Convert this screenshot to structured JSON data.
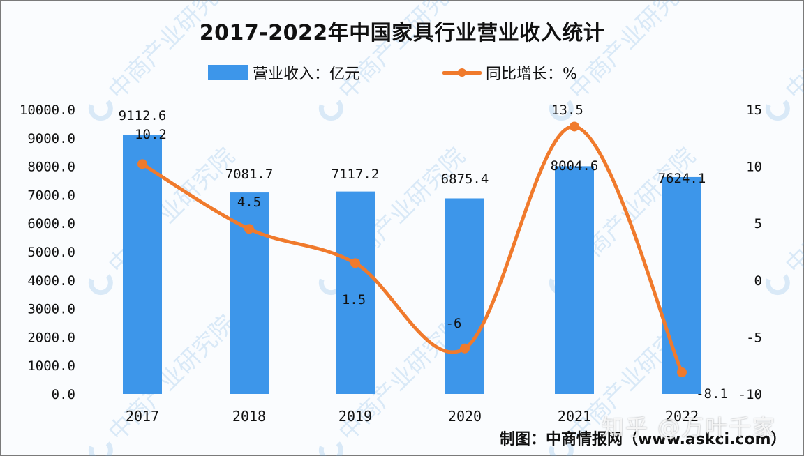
{
  "title": "2017-2022年中国家具行业营业收入统计",
  "legend": {
    "bar_label": "营业收入：亿元",
    "line_label": "同比增长：%"
  },
  "source": "制图：中商情报网（www.askci.com）",
  "overlay_watermark": "知乎 @万叶千家",
  "background_watermark": "中商产业研究院",
  "colors": {
    "bar": "#3d96ea",
    "line": "#f07a2c",
    "text": "#111111"
  },
  "chart_data": {
    "type": "bar+line",
    "title": "2017-2022年中国家具行业营业收入统计",
    "categories": [
      "2017",
      "2018",
      "2019",
      "2020",
      "2021",
      "2022"
    ],
    "series": [
      {
        "name": "营业收入：亿元",
        "type": "bar",
        "axis": "left",
        "values": [
          9112.6,
          7081.7,
          7117.2,
          6875.4,
          8004.6,
          7624.1
        ],
        "labels": [
          "9112.6",
          "7081.7",
          "7117.2",
          "6875.4",
          "8004.6",
          "7624.1"
        ]
      },
      {
        "name": "同比增长：%",
        "type": "line",
        "smooth": true,
        "axis": "right",
        "values": [
          10.2,
          4.5,
          1.5,
          -6,
          13.5,
          -8.1
        ],
        "labels": [
          "10.2",
          "4.5",
          "1.5",
          "-6",
          "13.5",
          "-8.1"
        ]
      }
    ],
    "left_axis": {
      "ylim": [
        0,
        10000
      ],
      "ticks": [
        "0.0",
        "1000.0",
        "2000.0",
        "3000.0",
        "4000.0",
        "5000.0",
        "6000.0",
        "7000.0",
        "8000.0",
        "9000.0",
        "10000.0"
      ]
    },
    "right_axis": {
      "ylim": [
        -10,
        15
      ],
      "ticks": [
        "-10",
        "-5",
        "0",
        "5",
        "10",
        "15"
      ]
    },
    "xlabel": "",
    "ylabel": "",
    "grid": false,
    "legend_position": "top"
  }
}
